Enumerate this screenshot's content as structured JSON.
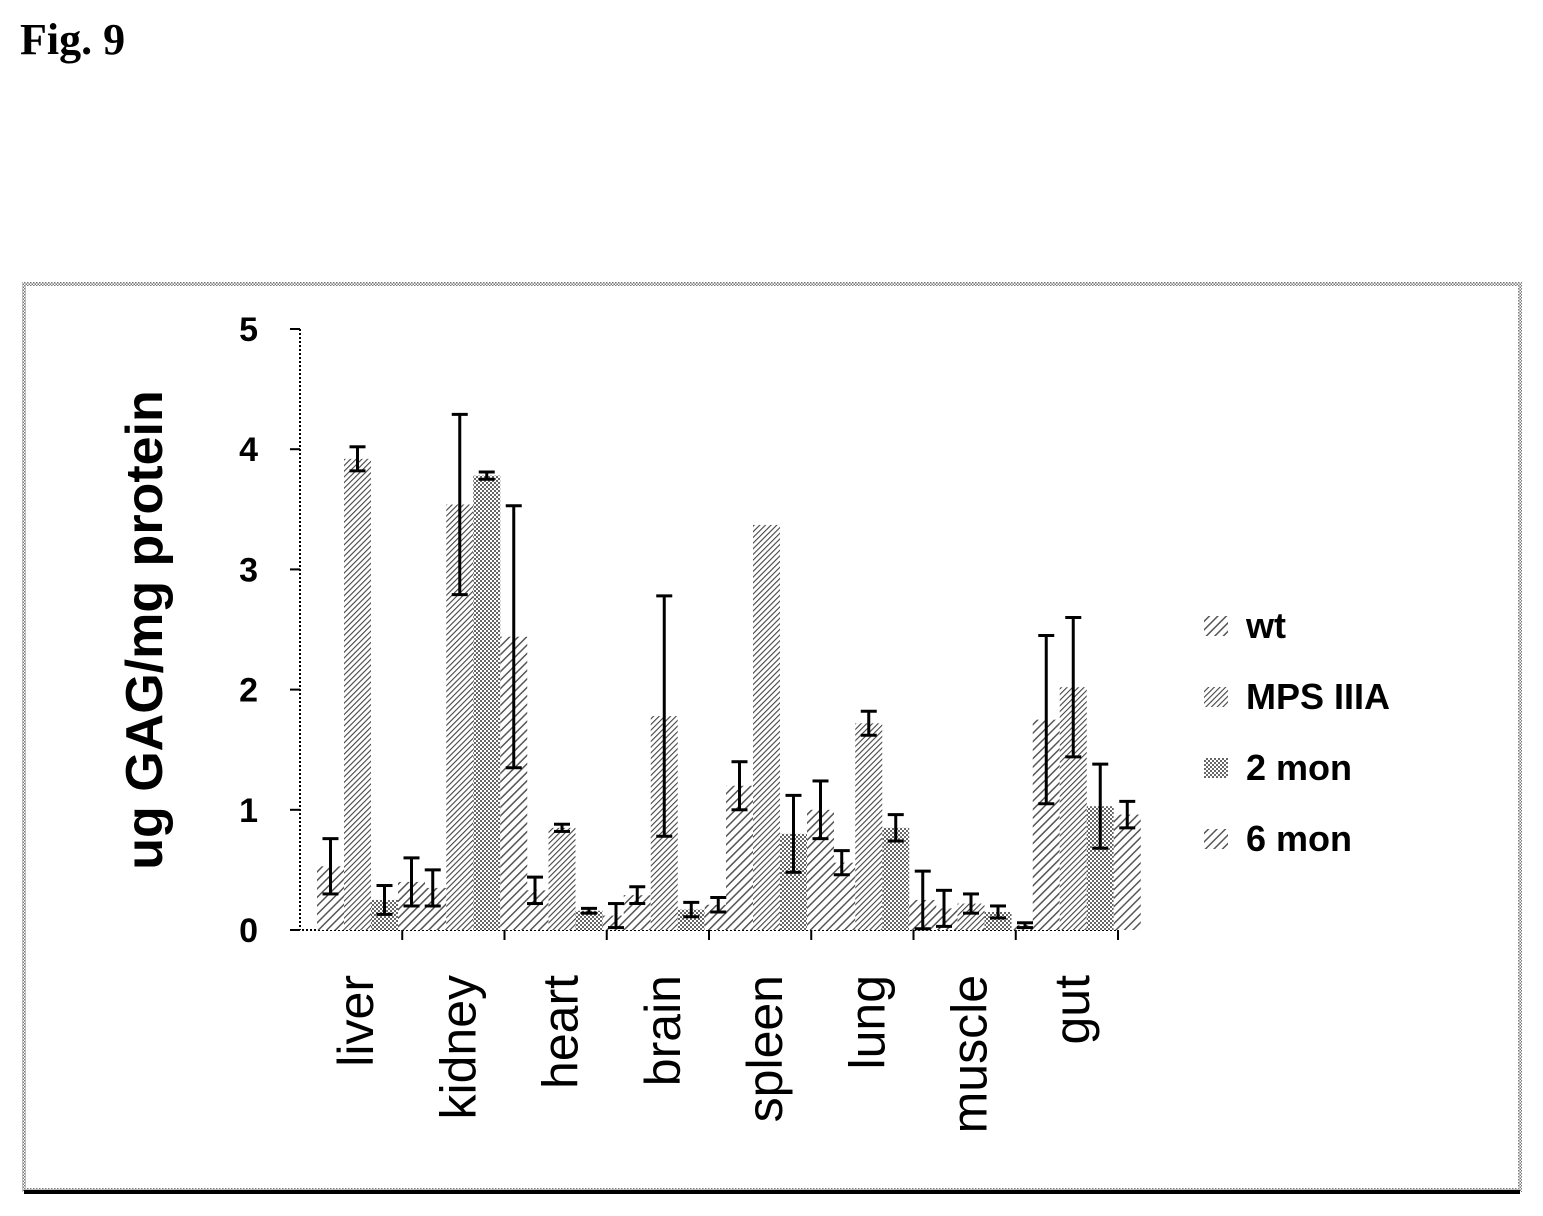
{
  "figure_label": "Fig. 9",
  "chart_data": {
    "type": "bar",
    "title": "",
    "xlabel": "",
    "ylabel": "ug GAG/mg protein",
    "ylim": [
      0,
      5
    ],
    "yticks": [
      0,
      1,
      2,
      3,
      4,
      5
    ],
    "grid": false,
    "legend": "right",
    "categories": [
      "liver",
      "kidney",
      "heart",
      "brain",
      "spleen",
      "lung",
      "muscle",
      "gut"
    ],
    "series": [
      {
        "name": "wt",
        "pattern": "diag",
        "values": [
          0.53,
          0.35,
          0.33,
          0.29,
          1.2,
          0.56,
          0.18,
          1.75
        ],
        "errors": [
          0.23,
          0.15,
          0.11,
          0.07,
          0.2,
          0.1,
          0.15,
          0.7
        ]
      },
      {
        "name": "MPS IIIA",
        "pattern": "diag-dense",
        "values": [
          3.92,
          3.54,
          0.85,
          1.78,
          3.37,
          1.72,
          0.22,
          2.02
        ],
        "errors": [
          0.1,
          0.75,
          0.03,
          1.0,
          0,
          0.1,
          0.08,
          0.58
        ]
      },
      {
        "name": "2 mon",
        "pattern": "dots",
        "values": [
          0.25,
          3.78,
          0.16,
          0.17,
          0.8,
          0.85,
          0.15,
          1.03
        ],
        "errors": [
          0.12,
          0.03,
          0.02,
          0.06,
          0.32,
          0.11,
          0.05,
          0.35
        ]
      },
      {
        "name": "6 mon",
        "pattern": "diag",
        "values": [
          0.4,
          2.44,
          0.12,
          0.21,
          1.0,
          0.25,
          0.04,
          0.96
        ],
        "errors": [
          0.2,
          1.09,
          0.1,
          0.06,
          0.24,
          0.24,
          0.02,
          0.11
        ]
      }
    ]
  }
}
